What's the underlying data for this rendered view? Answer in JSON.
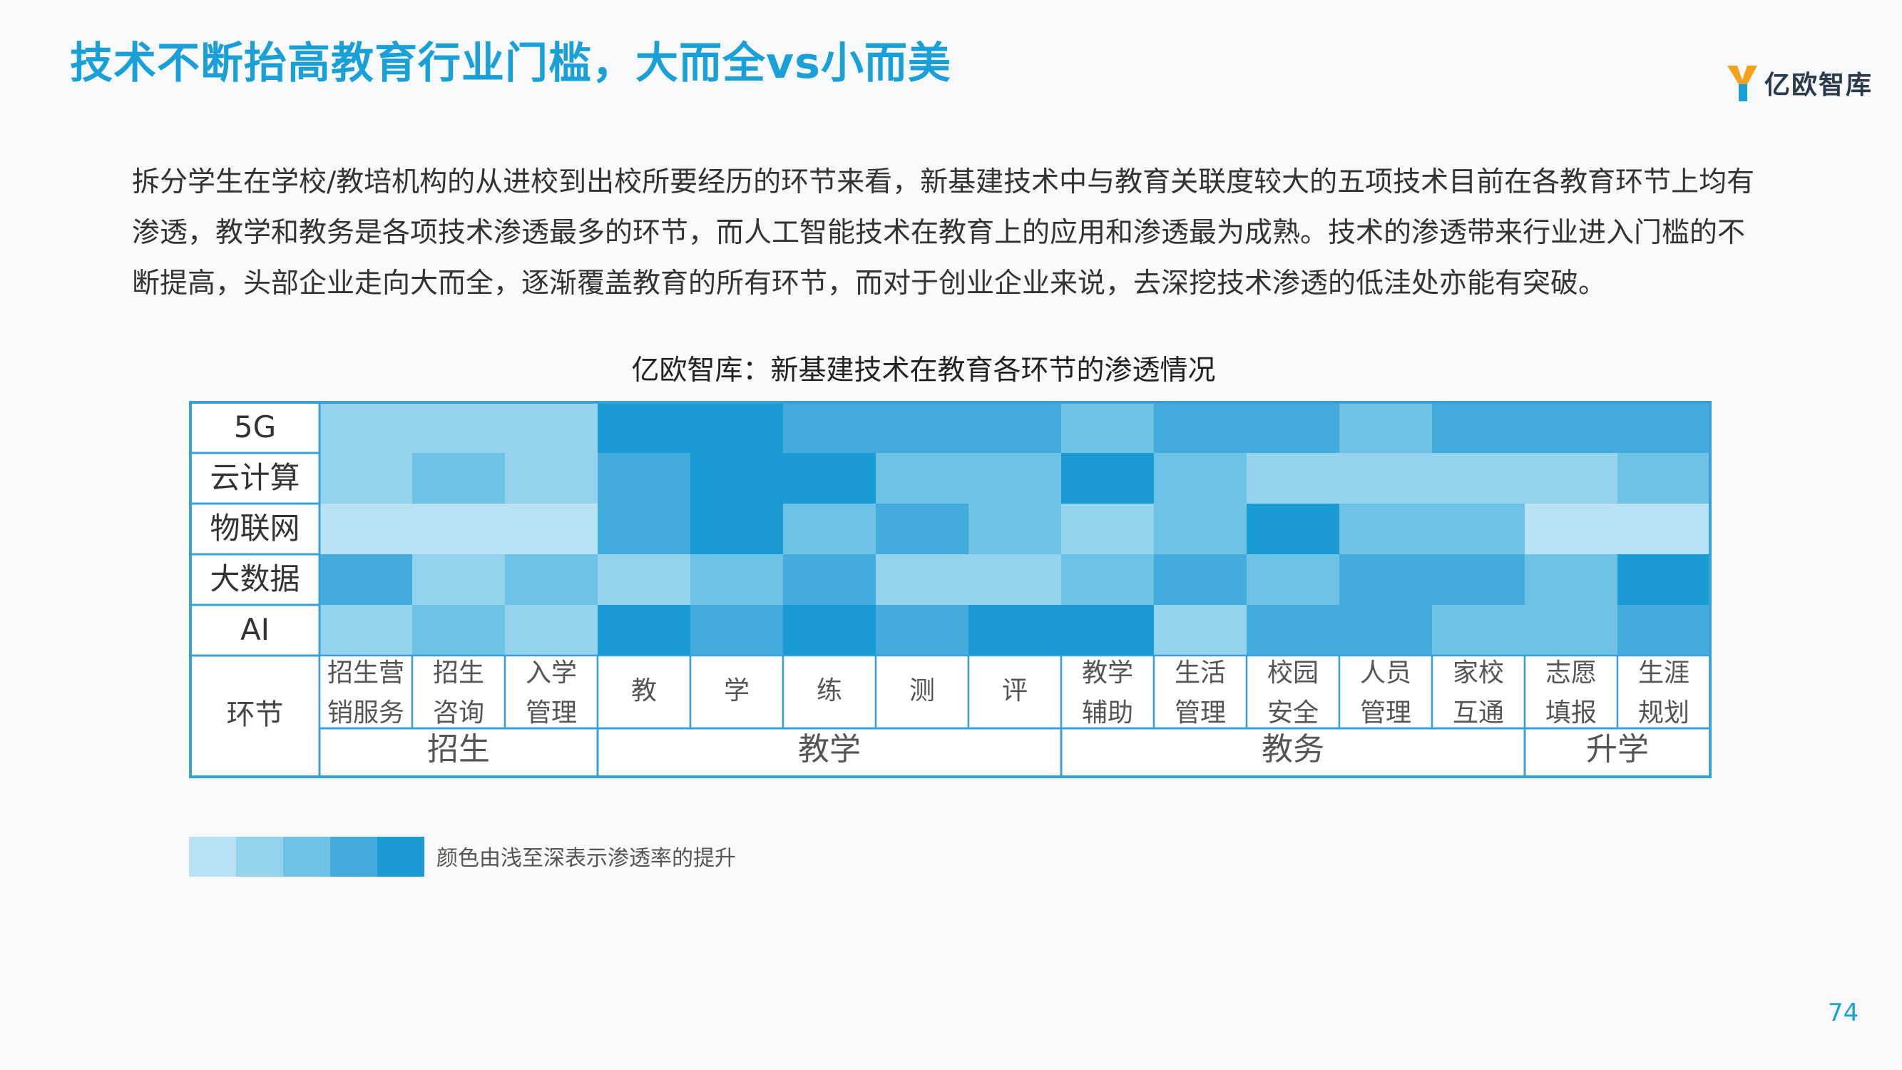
{
  "page": {
    "title": "技术不断抬高教育行业门槛，大而全vs小而美",
    "logo_text": "亿欧智库",
    "intro_lines": [
      "拆分学生在学校/教培机构的从进校到出校所要经历的环节来看，新基建技术中与教育关联度较大的五项技术目前在各教育环节上均有",
      "渗透，教学和教务是各项技术渗透最多的环节，而人工智能技术在教育上的应用和渗透最为成熟。技术的渗透带来行业进入门槛的不",
      "断提高，头部企业走向大而全，逐渐覆盖教育的所有环节，而对于创业企业来说，去深挖技术渗透的低洼处亦能有突破。"
    ],
    "legend_label": "颜色由浅至深表示渗透率的提升",
    "page_number": "74"
  },
  "chart_data": {
    "type": "heatmap",
    "title": "亿欧智库：新基建技术在教育各环节的渗透情况",
    "rows": [
      "5G",
      "云计算",
      "物联网",
      "大数据",
      "AI"
    ],
    "row_header_label": "环节",
    "columns": [
      [
        "招生营",
        "销服务"
      ],
      [
        "招生",
        "咨询"
      ],
      [
        "入学",
        "管理"
      ],
      [
        "教"
      ],
      [
        "学"
      ],
      [
        "练"
      ],
      [
        "测"
      ],
      [
        "评"
      ],
      [
        "教学",
        "辅助"
      ],
      [
        "生活",
        "管理"
      ],
      [
        "校园",
        "安全"
      ],
      [
        "人员",
        "管理"
      ],
      [
        "家校",
        "互通"
      ],
      [
        "志愿",
        "填报"
      ],
      [
        "生涯",
        "规划"
      ]
    ],
    "groups": [
      {
        "label": "招生",
        "span": 3
      },
      {
        "label": "教学",
        "span": 5
      },
      {
        "label": "教务",
        "span": 5
      },
      {
        "label": "升学",
        "span": 2
      }
    ],
    "levels": [
      [
        2,
        2,
        2,
        5,
        5,
        4,
        4,
        4,
        3,
        4,
        4,
        3,
        4,
        4,
        4
      ],
      [
        2,
        3,
        2,
        4,
        5,
        5,
        3,
        3,
        5,
        3,
        2,
        2,
        2,
        2,
        3
      ],
      [
        1,
        1,
        1,
        4,
        5,
        3,
        4,
        3,
        2,
        3,
        5,
        3,
        3,
        1,
        1
      ],
      [
        4,
        2,
        3,
        2,
        3,
        4,
        2,
        2,
        3,
        4,
        3,
        4,
        4,
        3,
        5
      ],
      [
        2,
        3,
        2,
        5,
        4,
        5,
        4,
        5,
        5,
        2,
        4,
        4,
        3,
        3,
        4
      ]
    ],
    "level_scale": [
      "#b8e3f4",
      "#94d3ee",
      "#6dc2e6",
      "#44acdc",
      "#1a9bd3"
    ],
    "grid_color": "#ffffff",
    "border_color": "#3aa0d6"
  }
}
